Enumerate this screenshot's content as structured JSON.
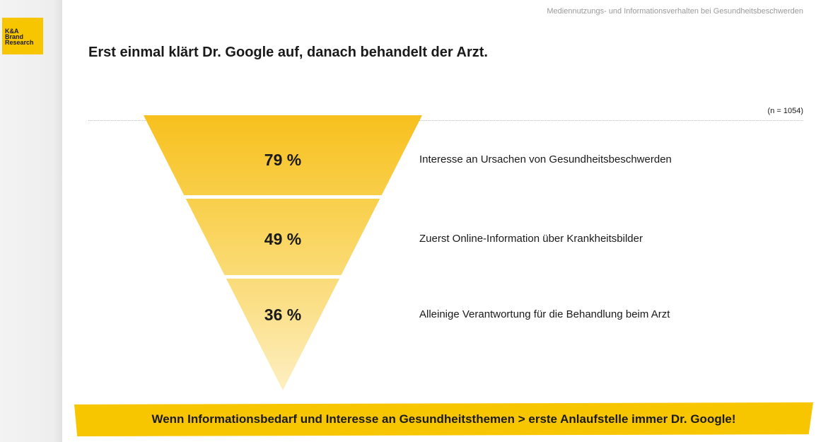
{
  "logo": {
    "lines": [
      "K&A",
      "Brand",
      "Research"
    ]
  },
  "header": {
    "subject": "Mediennutzungs- und Informationsverhalten bei Gesundheitsbeschwerden",
    "headline": "Erst einmal klärt Dr. Google auf, danach behandelt der Arzt."
  },
  "sample_note": "(n = 1054)",
  "chart_data": {
    "type": "funnel",
    "title": "",
    "stages": [
      {
        "value": 79,
        "value_label": "79 %",
        "label": "Interesse an Ursachen von Gesundheitsbeschwerden"
      },
      {
        "value": 49,
        "value_label": "49 %",
        "label": "Zuerst Online-Information über Krankheitsbilder"
      },
      {
        "value": 36,
        "value_label": "36 %",
        "label": "Alleinige Verantwortung für die Behandlung beim Arzt"
      }
    ],
    "colors": [
      "#f7c01e",
      "#f9d151",
      "#fbe08a",
      "#fdefc2"
    ]
  },
  "banner": {
    "text": "Wenn Informationsbedarf und Interesse an Gesundheitsthemen > erste Anlaufstelle immer Dr. Google!"
  }
}
